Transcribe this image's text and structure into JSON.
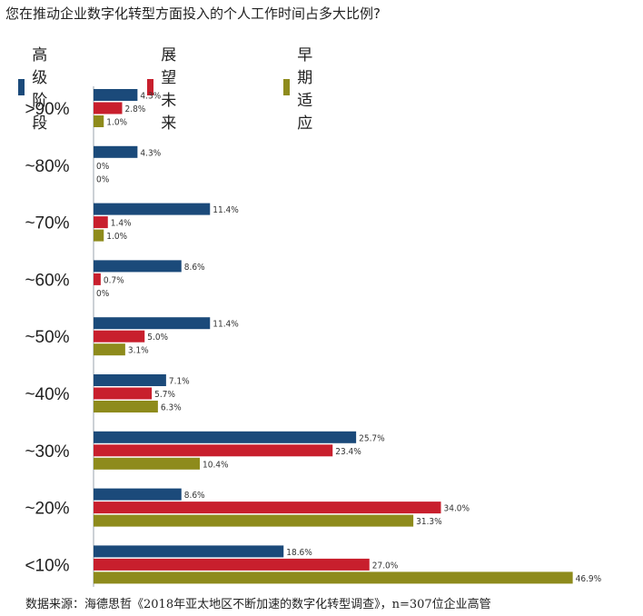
{
  "title": "您在推动企业数字化转型方面投入的个人工作时间占多大比例?",
  "source": "数据来源：海德思哲《2018年亚太地区不断加速的数字化转型调查》，n=307位企业高管",
  "legend": [
    {
      "label": "高级阶段",
      "color": "#1b4a7a"
    },
    {
      "label": "展望未来",
      "color": "#c81f2d"
    },
    {
      "label": "早期适应",
      "color": "#8e8b1c"
    }
  ],
  "chart_data": {
    "type": "bar",
    "orientation": "horizontal",
    "categories": [
      ">90%",
      "~80%",
      "~70%",
      "~60%",
      "~50%",
      "~40%",
      "~30%",
      "~20%",
      "<10%"
    ],
    "series": [
      {
        "name": "高级阶段",
        "values": [
          4.3,
          4.3,
          11.4,
          8.6,
          11.4,
          7.1,
          25.7,
          8.6,
          18.6
        ],
        "labels": [
          "4.3%",
          "4.3%",
          "11.4%",
          "8.6%",
          "11.4%",
          "7.1%",
          "25.7%",
          "8.6%",
          "18.6%"
        ]
      },
      {
        "name": "展望未来",
        "values": [
          2.8,
          0,
          1.4,
          0.7,
          5.0,
          5.7,
          23.4,
          34.0,
          27.0
        ],
        "labels": [
          "2.8%",
          "0%",
          "1.4%",
          "0.7%",
          "5.0%",
          "5.7%",
          "23.4%",
          "34.0%",
          "27.0%"
        ]
      },
      {
        "name": "早期适应",
        "values": [
          1.0,
          0,
          1.0,
          0,
          3.1,
          6.3,
          10.4,
          31.3,
          46.9
        ],
        "labels": [
          "1.0%",
          "0%",
          "1.0%",
          "0%",
          "3.1%",
          "6.3%",
          "10.4%",
          "31.3%",
          "46.9%"
        ]
      }
    ],
    "xlim": [
      0,
      50
    ],
    "grid": false,
    "legend_position": "top-left"
  }
}
